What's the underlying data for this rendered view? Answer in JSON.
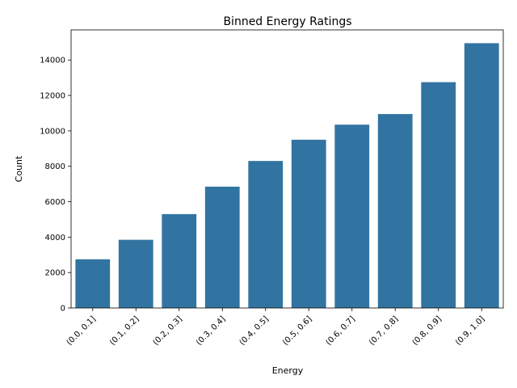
{
  "chart_data": {
    "type": "bar",
    "title": "Binned Energy Ratings",
    "xlabel": "Energy",
    "ylabel": "Count",
    "categories": [
      "(0.0, 0.1]",
      "(0.1, 0.2]",
      "(0.2, 0.3]",
      "(0.3, 0.4]",
      "(0.4, 0.5]",
      "(0.5, 0.6]",
      "(0.6, 0.7]",
      "(0.7, 0.8]",
      "(0.8, 0.9]",
      "(0.9, 1.0]"
    ],
    "values": [
      2750,
      3850,
      5300,
      6850,
      8300,
      9500,
      10350,
      10950,
      12750,
      14950
    ],
    "ylim": [
      0,
      15700
    ],
    "yticks": [
      0,
      2000,
      4000,
      6000,
      8000,
      10000,
      12000,
      14000
    ],
    "grid": false,
    "bar_color": "#3274a1"
  }
}
